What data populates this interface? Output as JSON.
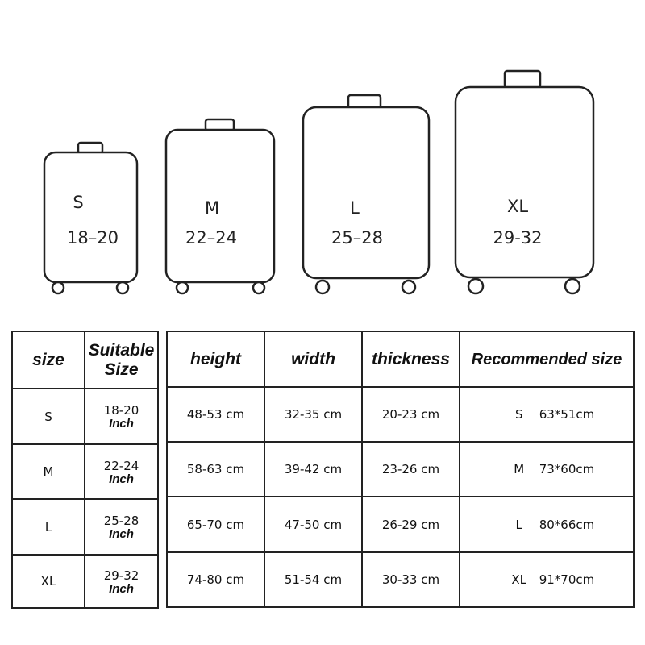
{
  "suitcases": [
    {
      "size": "S",
      "range": "18–20"
    },
    {
      "size": "M",
      "range": "22–24"
    },
    {
      "size": "L",
      "range": "25–28"
    },
    {
      "size": "XL",
      "range": "29-32"
    }
  ],
  "size_table": {
    "headers": [
      "size",
      "Suitable",
      "Size"
    ],
    "unit": "Inch",
    "rows": [
      {
        "size": "S",
        "suitable": "18-20"
      },
      {
        "size": "M",
        "suitable": "22-24"
      },
      {
        "size": "L",
        "suitable": "25-28"
      },
      {
        "size": "XL",
        "suitable": "29-32"
      }
    ]
  },
  "dim_table": {
    "headers": [
      "height",
      "width",
      "thickness",
      "Recommended size"
    ],
    "rows": [
      {
        "height": "48-53 cm",
        "width": "32-35 cm",
        "thickness": "20-23 cm",
        "rec_size": "S",
        "rec_dim": "63*51cm"
      },
      {
        "height": "58-63 cm",
        "width": "39-42 cm",
        "thickness": "23-26 cm",
        "rec_size": "M",
        "rec_dim": "73*60cm"
      },
      {
        "height": "65-70 cm",
        "width": "47-50 cm",
        "thickness": "26-29 cm",
        "rec_size": "L",
        "rec_dim": "80*66cm"
      },
      {
        "height": "74-80 cm",
        "width": "51-54 cm",
        "thickness": "30-33 cm",
        "rec_size": "XL",
        "rec_dim": "91*70cm"
      }
    ]
  }
}
